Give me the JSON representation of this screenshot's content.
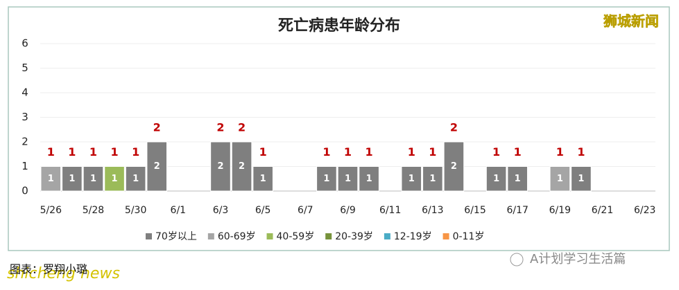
{
  "chart_data": {
    "type": "stacked-bar",
    "title": "死亡病患年龄分布",
    "categories": [
      "5/26",
      null,
      "5/28",
      null,
      "5/30",
      null,
      "6/1",
      null,
      "6/3",
      null,
      "6/5",
      null,
      "6/7",
      null,
      "6/9",
      null,
      "6/11",
      null,
      "6/13",
      null,
      "6/15",
      null,
      "6/17",
      null,
      "6/19",
      null,
      "6/21",
      null,
      "6/23"
    ],
    "series": [
      {
        "name": "70岁以上",
        "color": "#7f7f7f",
        "values": [
          null,
          1,
          1,
          null,
          1,
          2,
          null,
          null,
          2,
          2,
          1,
          null,
          null,
          1,
          1,
          1,
          null,
          1,
          1,
          2,
          null,
          1,
          1,
          null,
          null,
          1,
          null,
          null,
          null
        ]
      },
      {
        "name": "60-69岁",
        "color": "#a5a5a5",
        "values": [
          1,
          null,
          null,
          null,
          null,
          null,
          null,
          null,
          null,
          null,
          null,
          null,
          null,
          null,
          null,
          null,
          null,
          null,
          null,
          null,
          null,
          null,
          null,
          null,
          1,
          null,
          null,
          null,
          null
        ]
      },
      {
        "name": "40-59岁",
        "color": "#9bbb59",
        "values": [
          null,
          null,
          null,
          1,
          null,
          null,
          null,
          null,
          null,
          null,
          null,
          null,
          null,
          null,
          null,
          null,
          null,
          null,
          null,
          null,
          null,
          null,
          null,
          null,
          null,
          null,
          null,
          null,
          null
        ]
      },
      {
        "name": "20-39岁",
        "color": "#77933c",
        "values": [
          null,
          null,
          null,
          null,
          null,
          null,
          null,
          null,
          null,
          null,
          null,
          null,
          null,
          null,
          null,
          null,
          null,
          null,
          null,
          null,
          null,
          null,
          null,
          null,
          null,
          null,
          null,
          null,
          null
        ]
      },
      {
        "name": "12-19岁",
        "color": "#4bacc6",
        "values": [
          null,
          null,
          null,
          null,
          null,
          null,
          null,
          null,
          null,
          null,
          null,
          null,
          null,
          null,
          null,
          null,
          null,
          null,
          null,
          null,
          null,
          null,
          null,
          null,
          null,
          null,
          null,
          null,
          null
        ]
      },
      {
        "name": "0-11岁",
        "color": "#f79646",
        "values": [
          null,
          null,
          null,
          null,
          null,
          null,
          null,
          null,
          null,
          null,
          null,
          null,
          null,
          null,
          null,
          null,
          null,
          null,
          null,
          null,
          null,
          null,
          null,
          null,
          null,
          null,
          null,
          null,
          null
        ]
      }
    ],
    "totals": [
      1,
      1,
      1,
      1,
      1,
      2,
      null,
      null,
      2,
      2,
      1,
      null,
      null,
      1,
      1,
      1,
      null,
      1,
      1,
      2,
      null,
      1,
      1,
      null,
      1,
      1,
      null,
      null,
      null
    ],
    "ylim": [
      0,
      6
    ],
    "yticks": [
      0,
      1,
      2,
      3,
      4,
      5,
      6
    ],
    "grid": true
  },
  "watermarks": {
    "top_right": "狮城新闻",
    "bottom_left": "shicheng news",
    "credit": "图表：罗翔小璐",
    "account": "A计划学习生活篇"
  }
}
